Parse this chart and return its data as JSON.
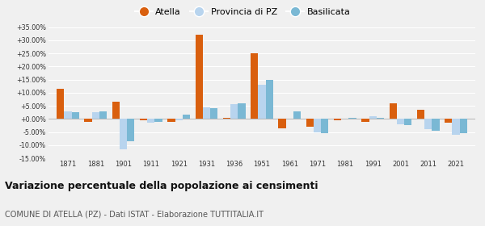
{
  "years": [
    1871,
    1881,
    1901,
    1911,
    1921,
    1931,
    1936,
    1951,
    1961,
    1971,
    1981,
    1991,
    2001,
    2011,
    2021
  ],
  "atella": [
    11.5,
    -1.0,
    6.5,
    -0.5,
    -1.0,
    32.0,
    0.5,
    25.0,
    -3.5,
    -3.0,
    -0.5,
    -1.0,
    6.0,
    3.5,
    -1.5
  ],
  "provincia": [
    3.0,
    2.5,
    -11.5,
    -1.5,
    -0.5,
    4.5,
    5.5,
    13.0,
    0.0,
    -5.0,
    0.0,
    1.0,
    -2.0,
    -4.0,
    -6.0
  ],
  "basilicata": [
    2.5,
    3.0,
    -8.5,
    -1.0,
    1.5,
    4.0,
    6.0,
    15.0,
    3.0,
    -5.5,
    0.5,
    0.5,
    -2.5,
    -4.5,
    -5.5
  ],
  "atella_color": "#d95f0e",
  "provincia_color": "#b8d4ee",
  "basilicata_color": "#7ab8d4",
  "title": "Variazione percentuale della popolazione ai censimenti",
  "subtitle": "COMUNE DI ATELLA (PZ) - Dati ISTAT - Elaborazione TUTTITALIA.IT",
  "ylim": [
    -15.0,
    35.0
  ],
  "yticks": [
    -15.0,
    -10.0,
    -5.0,
    0.0,
    5.0,
    10.0,
    15.0,
    20.0,
    25.0,
    30.0,
    35.0
  ],
  "background_color": "#f0f0f0",
  "plot_bg_color": "#f0f0f0",
  "grid_color": "#ffffff",
  "bar_width": 0.27
}
